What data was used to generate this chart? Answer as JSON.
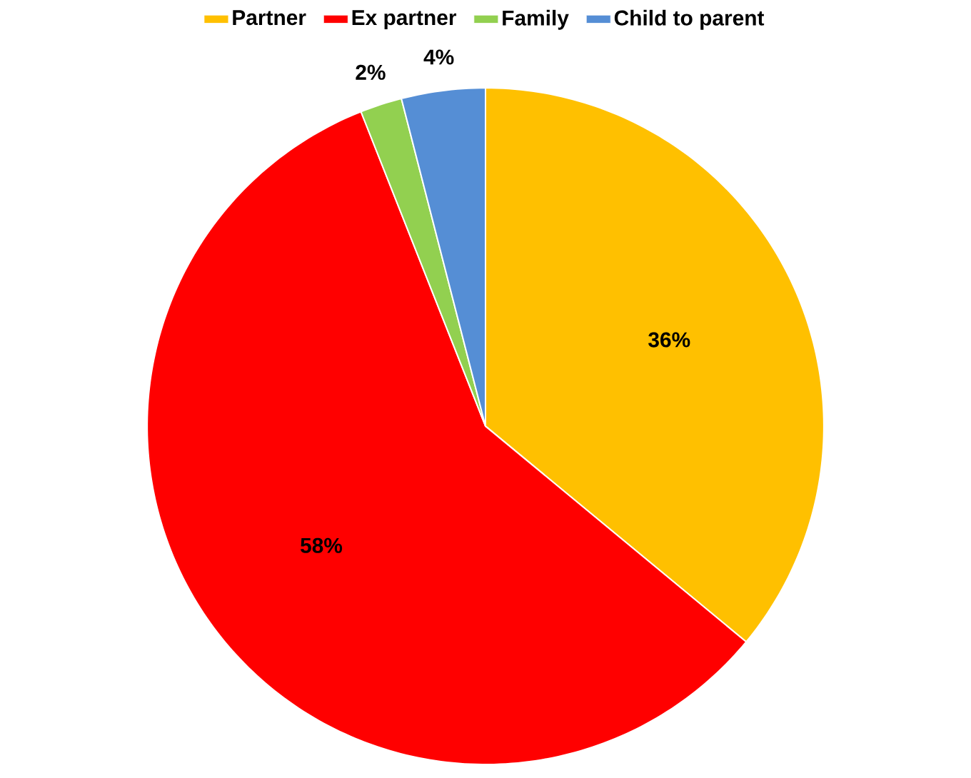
{
  "chart_data": {
    "type": "pie",
    "categories": [
      "Partner",
      "Ex partner",
      "Family",
      "Child to parent"
    ],
    "values": [
      36,
      58,
      2,
      4
    ],
    "colors": [
      "#ffc000",
      "#ff0000",
      "#92d050",
      "#558ed5"
    ],
    "value_labels": [
      "36%",
      "58%",
      "2%",
      "4%"
    ],
    "legend": "top"
  }
}
